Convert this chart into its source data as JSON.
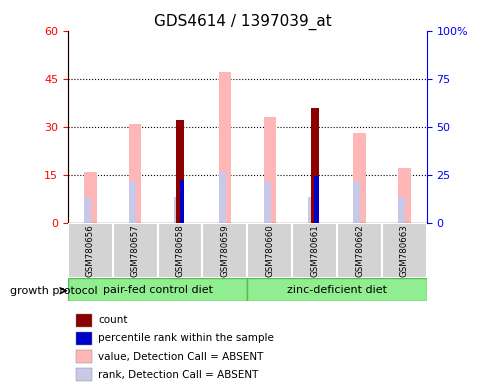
{
  "title": "GDS4614 / 1397039_at",
  "samples": [
    "GSM780656",
    "GSM780657",
    "GSM780658",
    "GSM780659",
    "GSM780660",
    "GSM780661",
    "GSM780662",
    "GSM780663"
  ],
  "count": [
    null,
    null,
    32,
    null,
    null,
    36,
    null,
    null
  ],
  "percentile_rank": [
    null,
    null,
    13.5,
    null,
    null,
    14.5,
    null,
    null
  ],
  "value_absent": [
    16,
    31,
    null,
    47,
    33,
    null,
    28,
    17
  ],
  "rank_absent": [
    8,
    13,
    8,
    16,
    13,
    8,
    13,
    8
  ],
  "left_ylim": [
    0,
    60
  ],
  "right_ylim": [
    0,
    100
  ],
  "left_yticks": [
    0,
    15,
    30,
    45,
    60
  ],
  "right_yticks": [
    0,
    25,
    50,
    75,
    100
  ],
  "right_yticklabels": [
    "0",
    "25",
    "50",
    "75",
    "100%"
  ],
  "group1_label": "pair-fed control diet",
  "group2_label": "zinc-deficient diet",
  "color_count": "#8B0000",
  "color_percentile": "#0000CD",
  "color_value_absent": "#FFB6B6",
  "color_rank_absent": "#C8C8E8",
  "group_bg": "#90EE90",
  "group_edge": "#55BB55",
  "sample_bg": "#d3d3d3",
  "legend_labels": [
    "count",
    "percentile rank within the sample",
    "value, Detection Call = ABSENT",
    "rank, Detection Call = ABSENT"
  ],
  "legend_colors": [
    "#8B0000",
    "#0000CD",
    "#FFB6B6",
    "#C8C8E8"
  ]
}
